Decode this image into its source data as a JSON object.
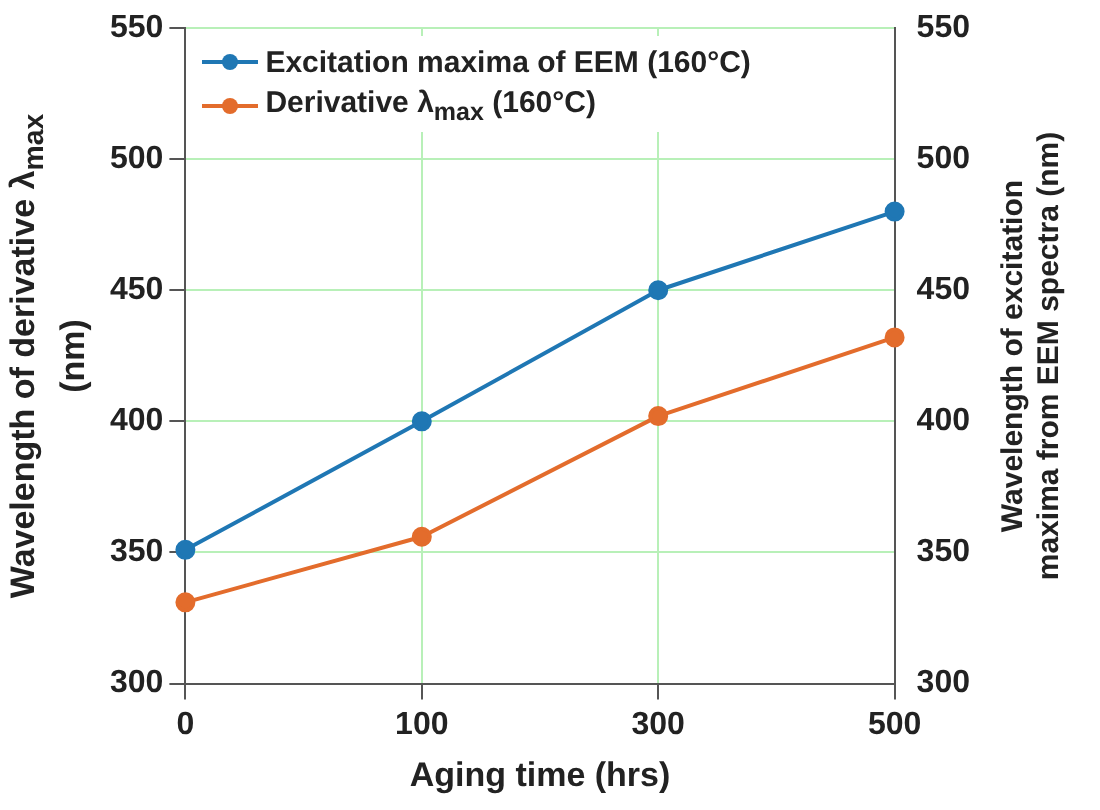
{
  "chart_data": {
    "type": "line",
    "xlabel": "Aging time (hrs)",
    "ylabel": "Wavelength of derivative λ$_{max}$ (nm)",
    "y2label": "Wavelength of excitation maxima from EEM spectra (nm)",
    "categories": [
      "0",
      "100",
      "300",
      "500"
    ],
    "series": [
      {
        "name": "Excitation maxima of EEM (160°C)",
        "color": "#1f77b4",
        "values": [
          351,
          400,
          450,
          480
        ],
        "axis": "y2"
      },
      {
        "name": "Derivative λ$_{max}$ (160°C)",
        "color": "#e36c2c",
        "values": [
          331,
          356,
          402,
          432
        ]
      }
    ],
    "ylim": [
      300,
      550
    ],
    "yticks": [
      300,
      350,
      400,
      450,
      500,
      550
    ],
    "y2lim": [
      300,
      550
    ],
    "y2ticks": [
      300,
      350,
      400,
      450,
      500,
      550
    ],
    "grid": true,
    "legend": "top left",
    "marker": "circle",
    "line_style": "solid"
  }
}
